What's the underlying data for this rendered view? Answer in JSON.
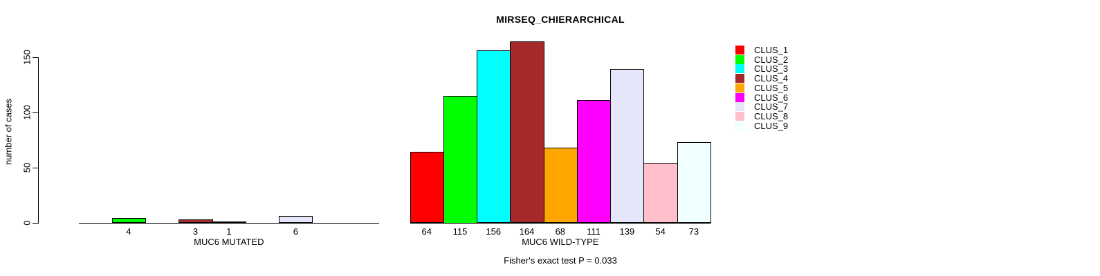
{
  "chart_data": {
    "type": "bar",
    "title": "MIRSEQ_CHIERARCHICAL",
    "ylabel": "number of cases",
    "yticks": [
      0,
      50,
      100,
      150
    ],
    "ylim": [
      0,
      164
    ],
    "grid": false,
    "legend_position": "top-right",
    "legend": [
      "CLUS_1",
      "CLUS_2",
      "CLUS_3",
      "CLUS_4",
      "CLUS_5",
      "CLUS_6",
      "CLUS_7",
      "CLUS_8",
      "CLUS_9"
    ],
    "cluster_colors": [
      "#ff0000",
      "#00ff00",
      "#00ffff",
      "#a52a2a",
      "#ffa500",
      "#ff00ff",
      "#e6e6fa",
      "#ffc0cb",
      "#f0ffff"
    ],
    "groups": [
      {
        "label": "MUC6 MUTATED",
        "values": [
          0,
          4,
          0,
          3,
          1,
          0,
          6,
          0,
          0
        ]
      },
      {
        "label": "MUC6 WILD-TYPE",
        "values": [
          64,
          115,
          156,
          164,
          68,
          111,
          139,
          54,
          73
        ]
      }
    ],
    "annotation": "Fisher's exact test P = 0.033"
  }
}
